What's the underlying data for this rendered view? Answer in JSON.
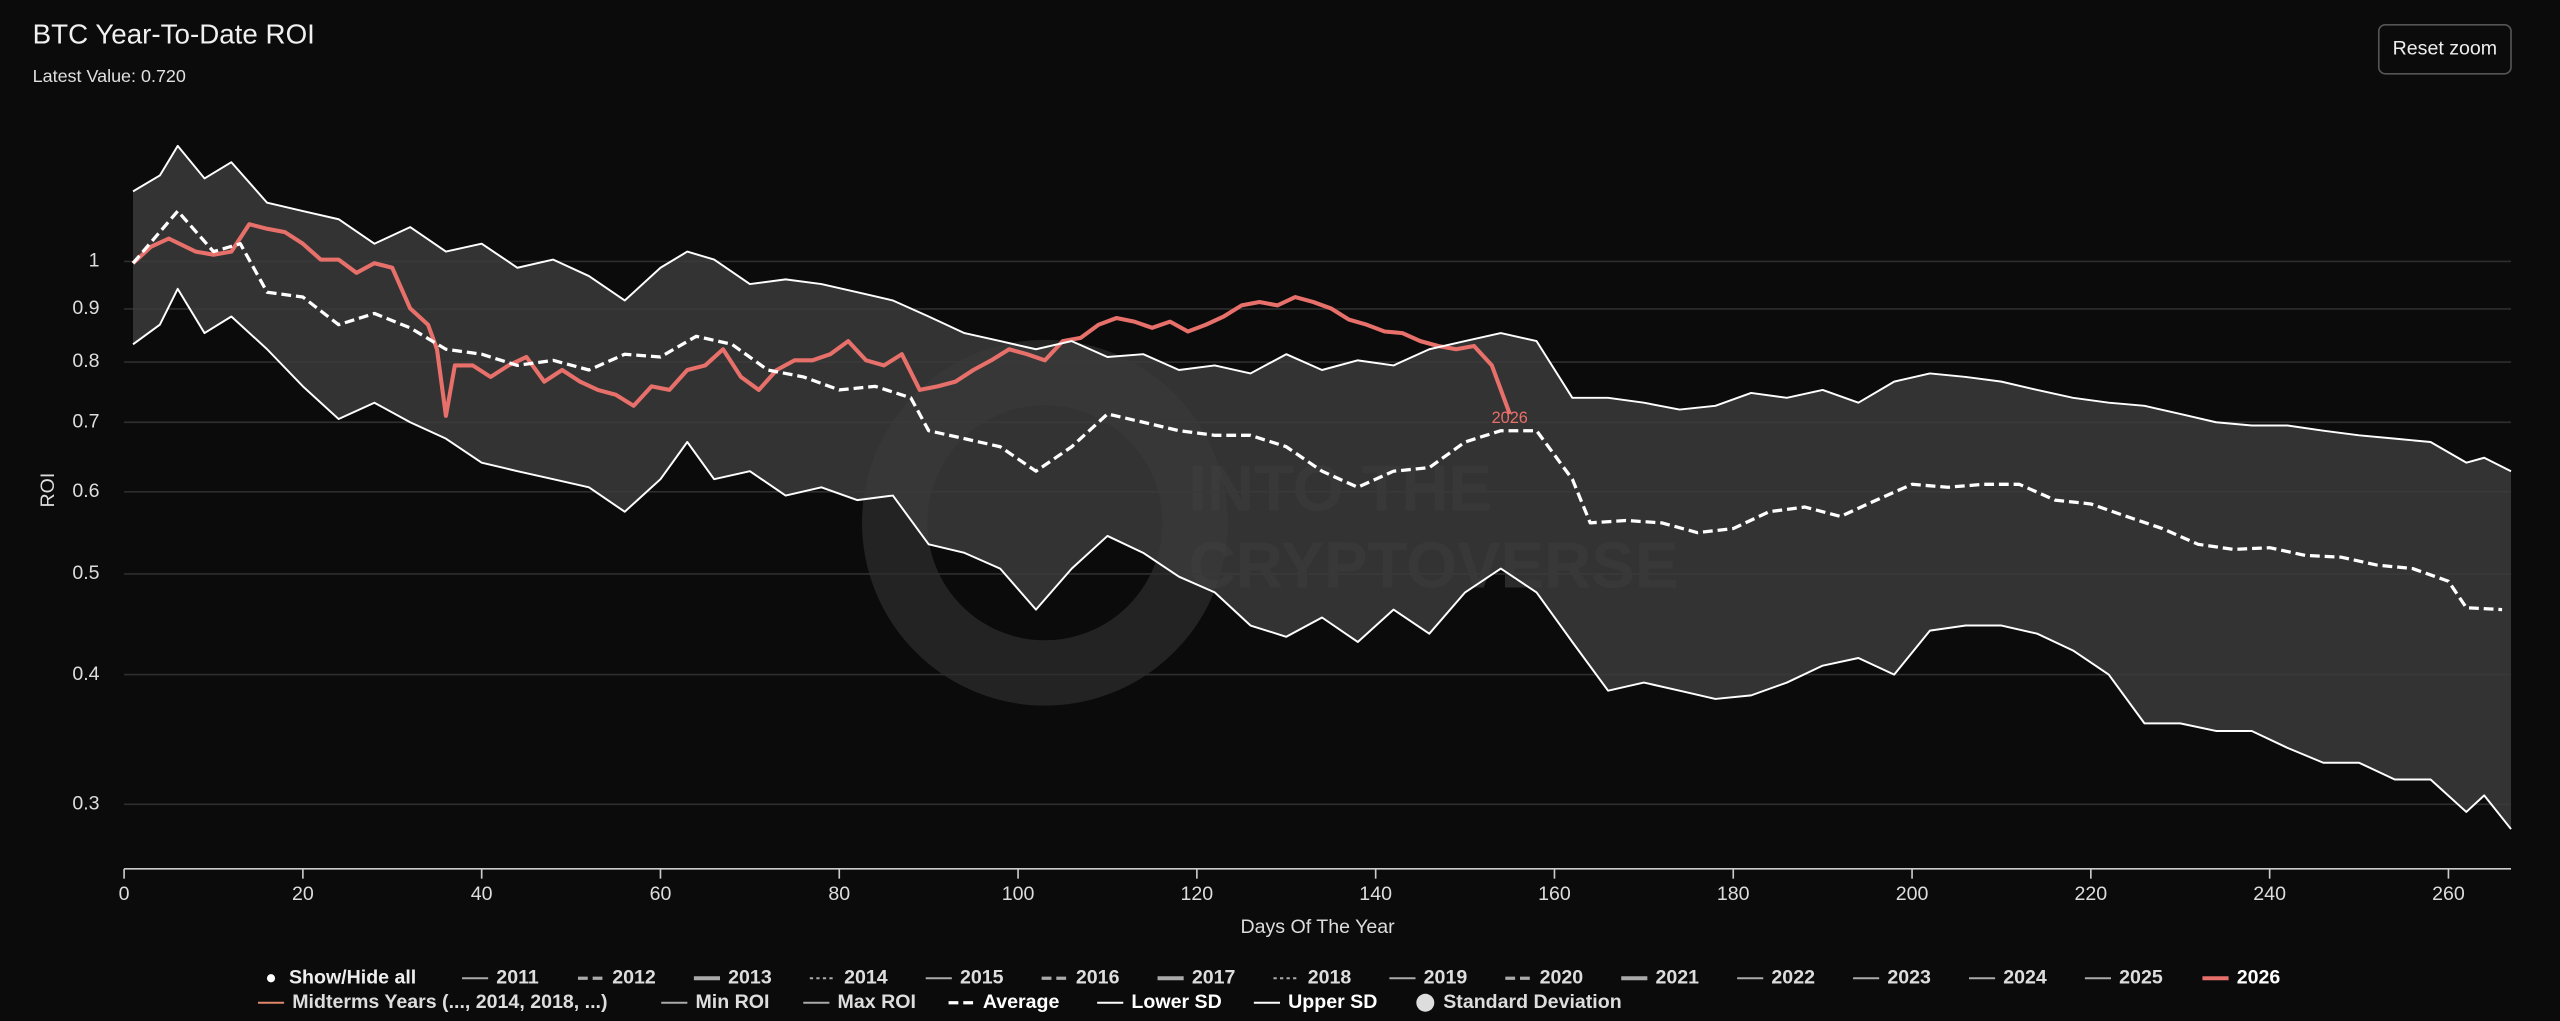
{
  "title": "BTC Year-To-Date ROI",
  "subtitle": "Latest Value: 0.720",
  "reset_button": "Reset zoom",
  "watermark": [
    "INTO THE",
    "CRYPTOVERSE"
  ],
  "legend_toggle": "Show/Hide all",
  "chart_data": {
    "type": "line",
    "x_label": "Days Of The Year",
    "y_label": "ROI",
    "xlim": [
      0,
      267
    ],
    "xticks": [
      0,
      20,
      40,
      60,
      80,
      100,
      120,
      140,
      160,
      180,
      200,
      220,
      240,
      260
    ],
    "ylim": [
      0.26,
      1.36
    ],
    "yticks": [
      0.3,
      0.4,
      0.5,
      0.6,
      0.7,
      0.8,
      0.9,
      1
    ],
    "log_y": true,
    "grid": true,
    "band": {
      "name": "Standard Deviation",
      "color": "#3b3b3b"
    },
    "series": [
      {
        "name": "2011",
        "color": "#aaaaaa",
        "dash": "solid"
      },
      {
        "name": "2012",
        "color": "#aaaaaa",
        "dash": "dashed"
      },
      {
        "name": "2013",
        "color": "#aaaaaa",
        "dash": "bold"
      },
      {
        "name": "2014",
        "color": "#aaaaaa",
        "dash": "dotted"
      },
      {
        "name": "2015",
        "color": "#aaaaaa",
        "dash": "solid"
      },
      {
        "name": "2016",
        "color": "#aaaaaa",
        "dash": "dashed"
      },
      {
        "name": "2017",
        "color": "#aaaaaa",
        "dash": "bold"
      },
      {
        "name": "2018",
        "color": "#aaaaaa",
        "dash": "dotted"
      },
      {
        "name": "2019",
        "color": "#aaaaaa",
        "dash": "solid"
      },
      {
        "name": "2020",
        "color": "#aaaaaa",
        "dash": "dashed"
      },
      {
        "name": "2021",
        "color": "#aaaaaa",
        "dash": "bold"
      },
      {
        "name": "2022",
        "color": "#aaaaaa",
        "dash": "solid"
      },
      {
        "name": "2023",
        "color": "#aaaaaa",
        "dash": "solid"
      },
      {
        "name": "2024",
        "color": "#aaaaaa",
        "dash": "solid"
      },
      {
        "name": "2025",
        "color": "#aaaaaa",
        "dash": "solid"
      },
      {
        "name": "2026",
        "color": "#e8706a",
        "dash": "bold",
        "end_label": true,
        "x": [
          1,
          3,
          5,
          8,
          10,
          12,
          14,
          16,
          18,
          20,
          22,
          24,
          26,
          28,
          30,
          32,
          34,
          35,
          36,
          37,
          39,
          41,
          43,
          45,
          47,
          49,
          51,
          53,
          55,
          57,
          59,
          61,
          63,
          65,
          67,
          69,
          71,
          73,
          75,
          77,
          79,
          81,
          83,
          85,
          87,
          89,
          91,
          93,
          95,
          97,
          99,
          101,
          103,
          105,
          107,
          109,
          111,
          113,
          115,
          117,
          119,
          121,
          123,
          125,
          127,
          129,
          131,
          133,
          135,
          137,
          139,
          141,
          143,
          145,
          147,
          149,
          151,
          153,
          155
        ],
        "values": [
          0.996,
          1.033,
          1.052,
          1.022,
          1.015,
          1.022,
          1.086,
          1.075,
          1.067,
          1.04,
          1.004,
          1.004,
          0.975,
          0.996,
          0.986,
          0.901,
          0.869,
          0.823,
          0.71,
          0.794,
          0.794,
          0.774,
          0.794,
          0.809,
          0.766,
          0.786,
          0.766,
          0.752,
          0.744,
          0.726,
          0.758,
          0.752,
          0.786,
          0.794,
          0.823,
          0.774,
          0.752,
          0.786,
          0.803,
          0.803,
          0.814,
          0.838,
          0.803,
          0.794,
          0.814,
          0.752,
          0.758,
          0.766,
          0.786,
          0.803,
          0.823,
          0.814,
          0.803,
          0.838,
          0.844,
          0.869,
          0.882,
          0.875,
          0.863,
          0.875,
          0.856,
          0.869,
          0.885,
          0.907,
          0.914,
          0.907,
          0.924,
          0.914,
          0.901,
          0.879,
          0.869,
          0.856,
          0.853,
          0.838,
          0.829,
          0.823,
          0.829,
          0.794,
          0.713
        ]
      },
      {
        "name": "Midterms Years (..., 2014, 2018, ...)",
        "color": "#e0876a",
        "dash": "solid"
      },
      {
        "name": "Min ROI",
        "color": "#aaaaaa",
        "dash": "solid"
      },
      {
        "name": "Max ROI",
        "color": "#aaaaaa",
        "dash": "solid"
      },
      {
        "name": "Average",
        "color": "#ffffff",
        "dash": "dashed",
        "x": [
          1,
          6,
          10,
          13,
          16,
          20,
          24,
          28,
          32,
          36,
          40,
          44,
          48,
          52,
          56,
          60,
          64,
          68,
          72,
          76,
          80,
          84,
          88,
          90,
          94,
          98,
          102,
          106,
          110,
          114,
          118,
          122,
          126,
          130,
          134,
          138,
          142,
          146,
          150,
          154,
          158,
          162,
          164,
          168,
          172,
          176,
          180,
          184,
          188,
          192,
          196,
          200,
          204,
          208,
          212,
          216,
          220,
          224,
          228,
          232,
          236,
          240,
          244,
          248,
          252,
          256,
          260,
          262,
          266
        ],
        "values": [
          0.996,
          1.118,
          1.022,
          1.04,
          0.934,
          0.924,
          0.869,
          0.891,
          0.863,
          0.823,
          0.814,
          0.794,
          0.803,
          0.786,
          0.814,
          0.809,
          0.847,
          0.832,
          0.786,
          0.774,
          0.752,
          0.758,
          0.739,
          0.687,
          0.675,
          0.663,
          0.628,
          0.663,
          0.713,
          0.7,
          0.687,
          0.68,
          0.68,
          0.663,
          0.628,
          0.606,
          0.628,
          0.633,
          0.67,
          0.687,
          0.687,
          0.617,
          0.56,
          0.563,
          0.56,
          0.548,
          0.553,
          0.574,
          0.58,
          0.568,
          0.589,
          0.61,
          0.606,
          0.61,
          0.61,
          0.589,
          0.584,
          0.568,
          0.553,
          0.534,
          0.528,
          0.53,
          0.521,
          0.519,
          0.51,
          0.506,
          0.492,
          0.464,
          0.462
        ]
      },
      {
        "name": "Lower SD",
        "color": "#ffffff",
        "dash": "solid",
        "x": [
          1,
          4,
          6,
          9,
          12,
          16,
          20,
          24,
          28,
          32,
          36,
          40,
          44,
          48,
          52,
          56,
          60,
          63,
          66,
          70,
          74,
          78,
          82,
          86,
          90,
          94,
          98,
          102,
          106,
          110,
          114,
          118,
          122,
          126,
          130,
          134,
          138,
          142,
          146,
          150,
          154,
          158,
          162,
          166,
          170,
          174,
          178,
          182,
          186,
          190,
          194,
          198,
          202,
          206,
          210,
          214,
          218,
          222,
          226,
          230,
          234,
          238,
          242,
          246,
          250,
          254,
          258,
          262,
          264,
          267
        ],
        "values": [
          0.832,
          0.869,
          0.941,
          0.853,
          0.885,
          0.823,
          0.758,
          0.705,
          0.731,
          0.7,
          0.675,
          0.64,
          0.628,
          0.617,
          0.606,
          0.574,
          0.617,
          0.67,
          0.617,
          0.628,
          0.595,
          0.606,
          0.589,
          0.595,
          0.534,
          0.524,
          0.506,
          0.462,
          0.506,
          0.544,
          0.524,
          0.497,
          0.48,
          0.446,
          0.435,
          0.454,
          0.43,
          0.462,
          0.438,
          0.48,
          0.506,
          0.48,
          0.43,
          0.386,
          0.393,
          0.386,
          0.379,
          0.382,
          0.393,
          0.408,
          0.415,
          0.4,
          0.441,
          0.446,
          0.446,
          0.438,
          0.422,
          0.4,
          0.359,
          0.359,
          0.353,
          0.353,
          0.34,
          0.329,
          0.329,
          0.317,
          0.317,
          0.295,
          0.306,
          0.284
        ]
      },
      {
        "name": "Upper SD",
        "color": "#ffffff",
        "dash": "solid",
        "x": [
          1,
          4,
          6,
          9,
          12,
          16,
          20,
          24,
          28,
          32,
          36,
          40,
          44,
          48,
          52,
          56,
          60,
          63,
          66,
          70,
          74,
          78,
          82,
          86,
          90,
          94,
          98,
          102,
          106,
          110,
          114,
          118,
          122,
          126,
          130,
          134,
          138,
          142,
          146,
          150,
          154,
          158,
          162,
          166,
          170,
          174,
          178,
          182,
          186,
          190,
          194,
          198,
          202,
          206,
          210,
          214,
          218,
          222,
          226,
          230,
          234,
          238,
          242,
          246,
          250,
          254,
          258,
          262,
          264,
          267
        ],
        "values": [
          1.168,
          1.21,
          1.292,
          1.202,
          1.246,
          1.139,
          1.118,
          1.098,
          1.04,
          1.079,
          1.022,
          1.04,
          0.986,
          1.004,
          0.968,
          0.917,
          0.986,
          1.022,
          1.004,
          0.951,
          0.961,
          0.951,
          0.934,
          0.917,
          0.885,
          0.853,
          0.838,
          0.823,
          0.838,
          0.809,
          0.814,
          0.786,
          0.794,
          0.78,
          0.814,
          0.786,
          0.803,
          0.794,
          0.823,
          0.838,
          0.853,
          0.838,
          0.739,
          0.739,
          0.731,
          0.72,
          0.726,
          0.747,
          0.739,
          0.752,
          0.731,
          0.766,
          0.78,
          0.774,
          0.766,
          0.752,
          0.739,
          0.731,
          0.726,
          0.713,
          0.7,
          0.695,
          0.695,
          0.687,
          0.68,
          0.675,
          0.67,
          0.64,
          0.647,
          0.628
        ]
      },
      {
        "name": "Standard Deviation",
        "color": "#dddddd",
        "dash": "circle"
      }
    ]
  }
}
